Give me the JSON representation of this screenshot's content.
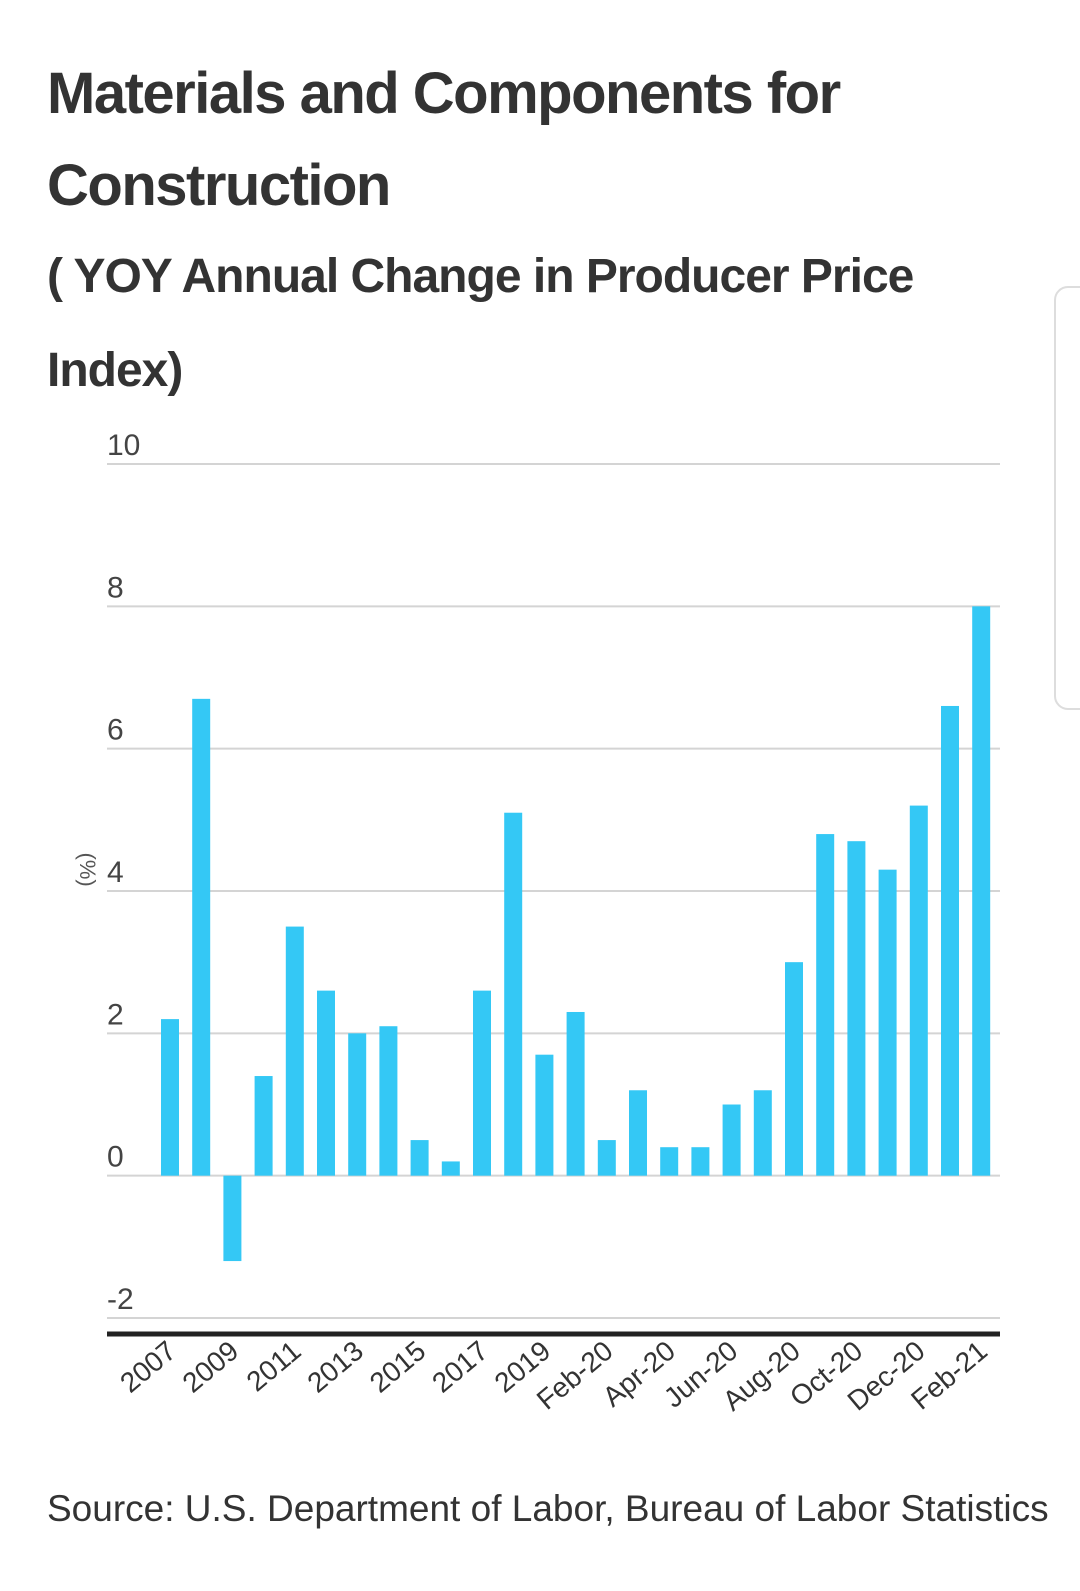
{
  "title": "Materials and Components for Construction",
  "subtitle": "( YOY Annual Change in Producer Price Index)",
  "source": "Source:  U.S. Department of Labor, Bureau of Labor Statistics",
  "colors": {
    "bar": "#34c8f5",
    "grid": "#d4d4d4",
    "axis": "#222222"
  },
  "chart_data": {
    "type": "bar",
    "title": "Materials and Components for Construction",
    "subtitle": "( YOY Annual Change in Producer Price Index)",
    "xlabel": "",
    "ylabel": "(%)",
    "ylim": [
      -2,
      10
    ],
    "yticks": [
      10,
      8,
      6,
      4,
      2,
      0,
      -2
    ],
    "grid": true,
    "categories": [
      "2007",
      "2008",
      "2009",
      "2010",
      "2011",
      "2012",
      "2013",
      "2014",
      "2015",
      "2016",
      "2017",
      "2018",
      "2019",
      "Jan-20",
      "Feb-20",
      "Mar-20",
      "Apr-20",
      "May-20",
      "Jun-20",
      "Jul-20",
      "Aug-20",
      "Sep-20",
      "Oct-20",
      "Nov-20",
      "Dec-20",
      "Jan-21",
      "Feb-21"
    ],
    "xticklabels": [
      "2007",
      "2009",
      "2011",
      "2013",
      "2015",
      "2017",
      "2019",
      "Feb-20",
      "Apr-20",
      "Jun-20",
      "Aug-20",
      "Oct-20",
      "Dec-20",
      "Feb-21"
    ],
    "values": [
      2.2,
      6.7,
      -1.2,
      1.4,
      3.5,
      2.6,
      2.0,
      2.1,
      0.5,
      0.2,
      2.6,
      5.1,
      1.7,
      2.3,
      0.5,
      1.2,
      0.4,
      0.4,
      1.0,
      1.2,
      3.0,
      4.8,
      4.7,
      4.3,
      5.2,
      6.6,
      8.0
    ]
  }
}
